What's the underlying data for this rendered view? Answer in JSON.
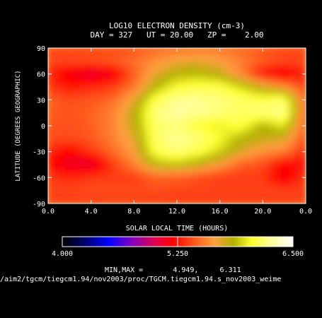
{
  "chart_data": {
    "type": "heatmap",
    "title": "LOG10 ELECTRON DENSITY (cm-3)",
    "subtitle": "DAY = 327   UT = 20.00   ZP =    2.00",
    "xlabel": "SOLAR LOCAL TIME (HOURS)",
    "ylabel": "LATITUDE (DEGREES GEOGRAPHIC)",
    "x_ticks": [
      "0.0",
      "4.0",
      "8.0",
      "12.0",
      "16.0",
      "20.0",
      "0.0"
    ],
    "y_ticks": [
      "90",
      "60",
      "30",
      "0",
      "-30",
      "-60",
      "-90"
    ],
    "xlim": [
      0,
      24
    ],
    "ylim": [
      -90,
      90
    ],
    "colorbar": {
      "min_label": "4.000",
      "mid_label": "5.250",
      "max_label": "6.500",
      "min": 4.0,
      "max": 6.5
    },
    "minmax_text": "MIN,MAX =       4.949,     6.311",
    "footer_path": "/aim2/tgcm/tiegcm1.94/nov2003/proc/TGCM.tiegcm1.94.s_nov2003_weime",
    "data_min": 4.949,
    "data_max": 6.311,
    "grid_lt": [
      0,
      2,
      4,
      6,
      8,
      10,
      12,
      14,
      16,
      18,
      20,
      22,
      24
    ],
    "grid_lat": [
      90,
      75,
      60,
      45,
      30,
      15,
      0,
      -15,
      -30,
      -45,
      -60,
      -75,
      -90
    ],
    "grid_values": [
      [
        5.35,
        5.35,
        5.35,
        5.35,
        5.38,
        5.45,
        5.48,
        5.5,
        5.5,
        5.45,
        5.4,
        5.35,
        5.35
      ],
      [
        5.4,
        5.4,
        5.42,
        5.45,
        5.5,
        5.6,
        5.68,
        5.7,
        5.65,
        5.55,
        5.45,
        5.4,
        5.4
      ],
      [
        5.3,
        5.15,
        5.05,
        5.15,
        5.45,
        5.7,
        5.85,
        5.88,
        5.8,
        5.55,
        5.25,
        5.15,
        5.3
      ],
      [
        5.35,
        5.25,
        5.3,
        5.35,
        5.5,
        5.85,
        6.05,
        6.1,
        6.1,
        5.95,
        5.75,
        5.6,
        5.35
      ],
      [
        5.45,
        5.4,
        5.42,
        5.48,
        5.7,
        6.1,
        6.25,
        6.25,
        6.2,
        6.15,
        6.1,
        6.15,
        5.45
      ],
      [
        5.45,
        5.42,
        5.45,
        5.55,
        5.8,
        6.2,
        6.28,
        6.25,
        6.2,
        6.15,
        6.2,
        6.25,
        5.45
      ],
      [
        5.42,
        5.4,
        5.45,
        5.55,
        5.8,
        6.15,
        6.2,
        6.05,
        6.0,
        6.1,
        5.85,
        6.0,
        5.42
      ],
      [
        5.4,
        5.4,
        5.42,
        5.55,
        5.7,
        6.15,
        6.25,
        6.2,
        6.05,
        5.85,
        5.8,
        5.75,
        5.4
      ],
      [
        5.3,
        5.2,
        5.35,
        5.48,
        5.65,
        6.1,
        6.2,
        6.1,
        5.95,
        5.75,
        5.6,
        5.55,
        5.3
      ],
      [
        5.25,
        5.1,
        5.05,
        5.35,
        5.55,
        5.85,
        5.9,
        5.8,
        5.65,
        5.45,
        5.4,
        5.2,
        5.25
      ],
      [
        5.35,
        5.3,
        5.35,
        5.35,
        5.35,
        5.45,
        5.45,
        5.4,
        5.35,
        5.35,
        5.35,
        5.15,
        5.35
      ],
      [
        5.38,
        5.38,
        5.4,
        5.4,
        5.4,
        5.4,
        5.38,
        5.38,
        5.38,
        5.38,
        5.38,
        5.38,
        5.38
      ],
      [
        5.35,
        5.35,
        5.35,
        5.35,
        5.35,
        5.35,
        5.35,
        5.35,
        5.35,
        5.35,
        5.35,
        5.35,
        5.35
      ]
    ]
  }
}
